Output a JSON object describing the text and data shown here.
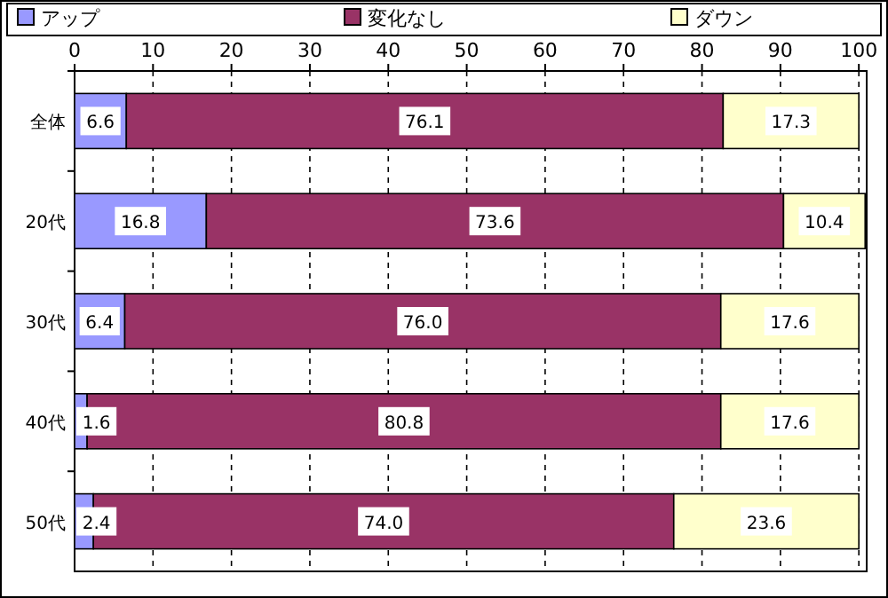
{
  "chart_data": {
    "type": "bar",
    "orientation": "horizontal",
    "stacked": true,
    "categories": [
      "全体",
      "20代",
      "30代",
      "40代",
      "50代"
    ],
    "series": [
      {
        "name": "アップ",
        "color": "#9999ff",
        "values": [
          6.6,
          16.8,
          6.4,
          1.6,
          2.4
        ],
        "value_labels": [
          "6.6",
          "16.8",
          "6.4",
          "1.6",
          "2.4"
        ]
      },
      {
        "name": "変化なし",
        "color": "#993366",
        "values": [
          76.1,
          73.6,
          76.0,
          80.8,
          74.0
        ],
        "value_labels": [
          "76.1",
          "73.6",
          "76.0",
          "80.8",
          "74.0"
        ]
      },
      {
        "name": "ダウン",
        "color": "#ffffcc",
        "values": [
          17.3,
          10.4,
          17.6,
          17.6,
          23.6
        ],
        "value_labels": [
          "17.3",
          "10.4",
          "17.6",
          "17.6",
          "23.6"
        ]
      }
    ],
    "xlim": [
      0,
      101
    ],
    "xticks": [
      0,
      10,
      20,
      30,
      40,
      50,
      60,
      70,
      80,
      90,
      100
    ],
    "grid": "x",
    "legend": "top"
  }
}
